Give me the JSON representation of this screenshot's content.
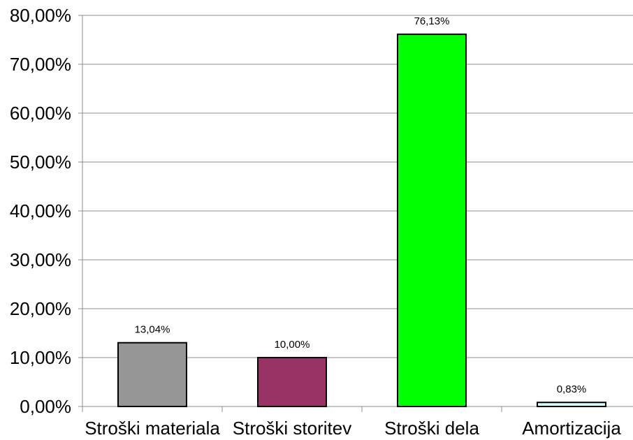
{
  "chart_data": {
    "type": "bar",
    "title": "",
    "xlabel": "",
    "ylabel": "",
    "categories": [
      "Stroški materiala",
      "Stroški storitev",
      "Stroški dela",
      "Amortizacija"
    ],
    "values": [
      13.04,
      10.0,
      76.13,
      0.83
    ],
    "data_labels": [
      "13,04%",
      "10,00%",
      "76,13%",
      "0,83%"
    ],
    "bar_colors": [
      "#969696",
      "#993366",
      "#00FF00",
      "#CCFFFF"
    ],
    "ylim": [
      0,
      80
    ],
    "yticks": [
      0,
      10,
      20,
      30,
      40,
      50,
      60,
      70,
      80
    ],
    "ytick_labels": [
      "0,00%",
      "10,00%",
      "20,00%",
      "30,00%",
      "40,00%",
      "50,00%",
      "60,00%",
      "70,00%",
      "80,00%"
    ],
    "grid": true,
    "legend": "none"
  }
}
